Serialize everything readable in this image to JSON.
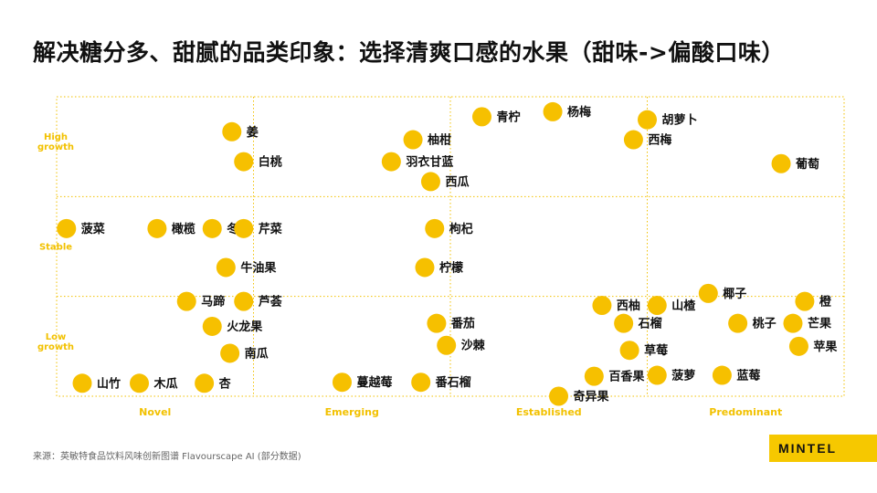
{
  "title": "解决糖分多、甜腻的品类印象：选择清爽口感的水果（甜味->偏酸口味）",
  "source": "来源：英敏特食品饮料风味创新图谱 Flavourscape AI (部分数据)",
  "brand": "MINTEL",
  "colors": {
    "dot": "#f6c000",
    "grid": "#f2c100",
    "label": "#111111",
    "axis_text": "#f2c100"
  },
  "chart_data": {
    "type": "scatter",
    "title": "",
    "x_categories": [
      "Novel",
      "Emerging",
      "Established",
      "Predominant"
    ],
    "y_categories": [
      "Low growth",
      "Stable",
      "High growth"
    ],
    "y_category_lines": [
      [
        "Low",
        "growth"
      ],
      [
        "Stable"
      ],
      [
        "High",
        "growth"
      ]
    ],
    "xlim": [
      0,
      4
    ],
    "ylim": [
      0,
      3
    ],
    "grid": true,
    "points": [
      {
        "label": "姜",
        "x": 0.89,
        "y": 2.65
      },
      {
        "label": "白桃",
        "x": 0.95,
        "y": 2.35
      },
      {
        "label": "菠菜",
        "x": 0.05,
        "y": 1.68
      },
      {
        "label": "橄榄",
        "x": 0.51,
        "y": 1.68
      },
      {
        "label": "冬瓜",
        "x": 0.79,
        "y": 1.68
      },
      {
        "label": "芹菜",
        "x": 0.95,
        "y": 1.68
      },
      {
        "label": "牛油果",
        "x": 0.86,
        "y": 1.29
      },
      {
        "label": "马蹄",
        "x": 0.66,
        "y": 0.95
      },
      {
        "label": "芦荟",
        "x": 0.95,
        "y": 0.95
      },
      {
        "label": "火龙果",
        "x": 0.79,
        "y": 0.7
      },
      {
        "label": "南瓜",
        "x": 0.88,
        "y": 0.43
      },
      {
        "label": "山竹",
        "x": 0.13,
        "y": 0.13
      },
      {
        "label": "木瓜",
        "x": 0.42,
        "y": 0.13
      },
      {
        "label": "杏",
        "x": 0.75,
        "y": 0.13
      },
      {
        "label": "青柠",
        "x": 2.16,
        "y": 2.8
      },
      {
        "label": "杨梅",
        "x": 2.52,
        "y": 2.85
      },
      {
        "label": "柚柑",
        "x": 1.81,
        "y": 2.57
      },
      {
        "label": "羽衣甘蓝",
        "x": 1.7,
        "y": 2.35
      },
      {
        "label": "西瓜",
        "x": 1.9,
        "y": 2.15
      },
      {
        "label": "枸杞",
        "x": 1.92,
        "y": 1.68
      },
      {
        "label": "柠檬",
        "x": 1.87,
        "y": 1.29
      },
      {
        "label": "番茄",
        "x": 1.93,
        "y": 0.73
      },
      {
        "label": "沙棘",
        "x": 1.98,
        "y": 0.51
      },
      {
        "label": "蔓越莓",
        "x": 1.45,
        "y": 0.14
      },
      {
        "label": "番石榴",
        "x": 1.85,
        "y": 0.14
      },
      {
        "label": "胡萝卜",
        "x": 3.0,
        "y": 2.77
      },
      {
        "label": "西梅",
        "x": 2.93,
        "y": 2.57
      },
      {
        "label": "葡萄",
        "x": 3.68,
        "y": 2.33
      },
      {
        "label": "西柚",
        "x": 2.77,
        "y": 0.91
      },
      {
        "label": "山楂",
        "x": 3.05,
        "y": 0.91
      },
      {
        "label": "椰子",
        "x": 3.31,
        "y": 1.03
      },
      {
        "label": "石榴",
        "x": 2.88,
        "y": 0.73
      },
      {
        "label": "桃子",
        "x": 3.46,
        "y": 0.73
      },
      {
        "label": "橙",
        "x": 3.8,
        "y": 0.95
      },
      {
        "label": "芒果",
        "x": 3.74,
        "y": 0.73
      },
      {
        "label": "草莓",
        "x": 2.91,
        "y": 0.46
      },
      {
        "label": "苹果",
        "x": 3.77,
        "y": 0.5
      },
      {
        "label": "百香果",
        "x": 2.73,
        "y": 0.2
      },
      {
        "label": "菠萝",
        "x": 3.05,
        "y": 0.21
      },
      {
        "label": "蓝莓",
        "x": 3.38,
        "y": 0.21
      },
      {
        "label": "奇异果",
        "x": 2.55,
        "y": 0.0
      }
    ]
  }
}
